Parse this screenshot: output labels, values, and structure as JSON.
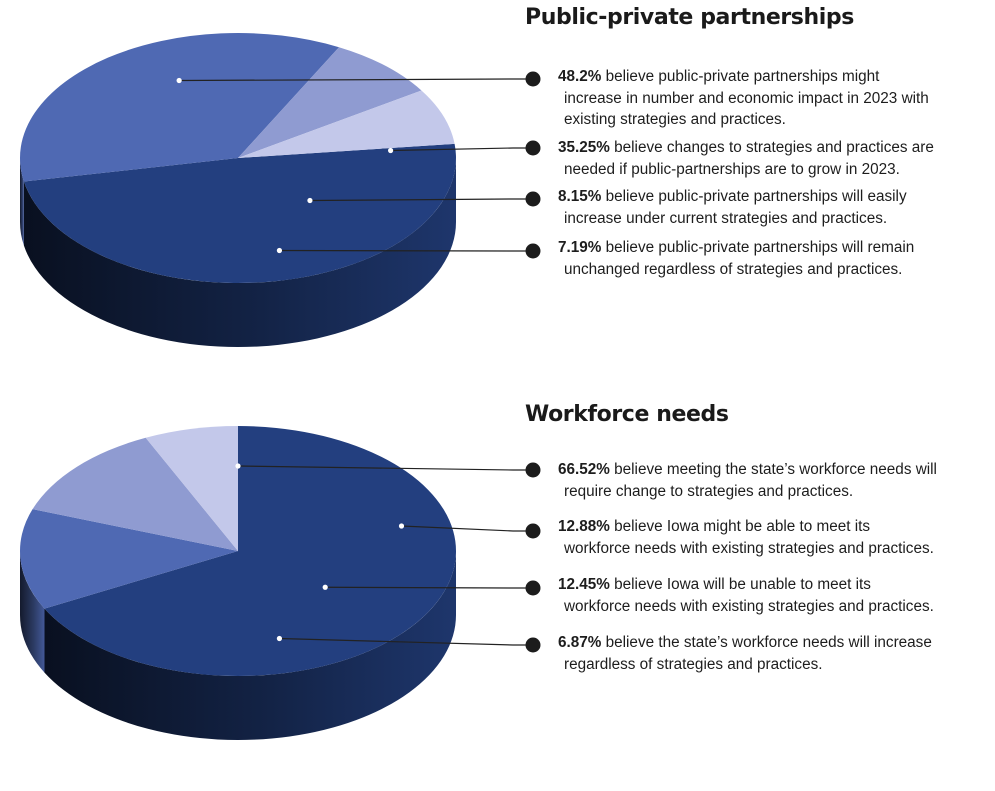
{
  "chart_data": [
    {
      "type": "pie",
      "title": "Public-private partnerships",
      "slices": [
        {
          "value": 48.2,
          "label_pct": "48.2%",
          "label_lines": [
            "believe public-private partnerships might",
            "increase in number and economic impact in 2023 with",
            "existing strategies and practices."
          ],
          "color": "#233f7f"
        },
        {
          "value": 35.25,
          "label_pct": "35.25%",
          "label_lines": [
            "believe changes to strategies and practices are",
            "needed if public-partnerships are to grow in 2023."
          ],
          "color": "#4f69b3"
        },
        {
          "value": 8.15,
          "label_pct": "8.15%",
          "label_lines": [
            "believe public-private partnerships will easily",
            "increase under current strategies and practices."
          ],
          "color": "#8f9bd1"
        },
        {
          "value": 7.19,
          "label_pct": "7.19%",
          "label_lines": [
            "believe public-private partnerships will remain",
            "unchanged regardless of strategies and practices."
          ],
          "color": "#c3c8ea"
        }
      ]
    },
    {
      "type": "pie",
      "title": "Workforce needs",
      "slices": [
        {
          "value": 66.52,
          "label_pct": "66.52%",
          "label_lines": [
            "believe meeting the state’s workforce needs will",
            "require change to strategies and practices."
          ],
          "color": "#233f7f"
        },
        {
          "value": 12.88,
          "label_pct": "12.88%",
          "label_lines": [
            "believe Iowa might be able to meet its",
            "workforce needs with existing strategies and practices."
          ],
          "color": "#4f69b3"
        },
        {
          "value": 12.45,
          "label_pct": "12.45%",
          "label_lines": [
            "believe Iowa will be unable to meet its",
            "workforce needs with existing strategies and practices."
          ],
          "color": "#8f9bd1"
        },
        {
          "value": 6.87,
          "label_pct": "6.87%",
          "label_lines": [
            "believe the state’s workforce needs will increase",
            "regardless of strategies and practices."
          ],
          "color": "#c3c8ea"
        }
      ]
    }
  ]
}
